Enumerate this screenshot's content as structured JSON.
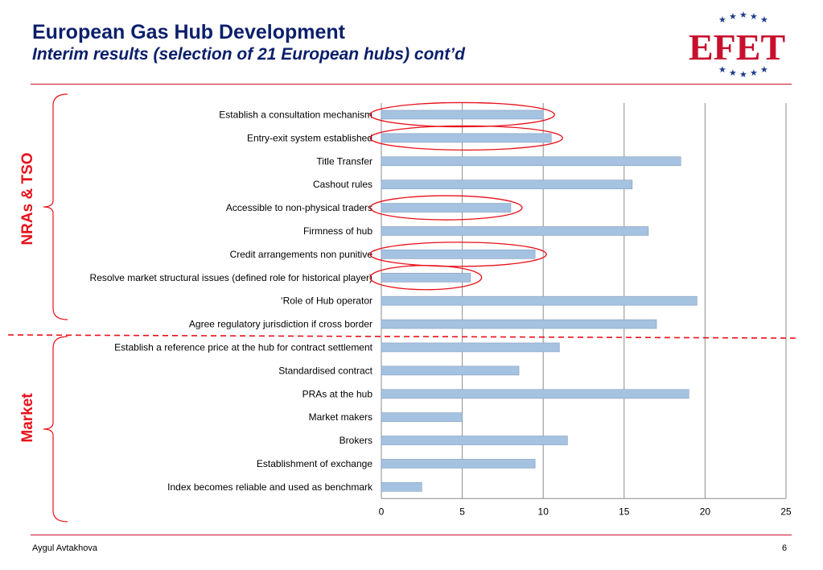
{
  "header": {
    "title": "European Gas Hub Development",
    "subtitle": "Interim results (selection of 21 European hubs)  cont’d"
  },
  "logo": {
    "text": "EFET",
    "star_icon": "star-icon"
  },
  "groups": [
    {
      "label": "NRAs & TSO"
    },
    {
      "label": "Market"
    }
  ],
  "footer": {
    "author": "Aygul Avtakhova",
    "page": "6"
  },
  "colors": {
    "bar": "#a6c2e1",
    "bar_stroke": "#7f9dbf",
    "accent": "#e8101a",
    "title": "#0b1f6b"
  },
  "chart_data": {
    "type": "bar",
    "orientation": "horizontal",
    "categories": [
      "Establish a consultation mechanism",
      "Entry-exit system established",
      "Title Transfer",
      "Cashout rules",
      "Accessible to non-physical traders",
      "Firmness of hub",
      "Credit arrangements non punitive",
      "Resolve market structural issues (defined role for historical player)",
      "‘Role of Hub operator",
      "Agree regulatory jurisdiction if cross border",
      "Establish a reference price at the hub for contract settlement",
      "Standardised contract",
      "PRAs at the hub",
      "Market makers",
      "Brokers",
      "Establishment of exchange",
      "Index becomes reliable and used as benchmark"
    ],
    "values": [
      10,
      10.5,
      18.5,
      15.5,
      8,
      16.5,
      9.5,
      5.5,
      19.5,
      17,
      11,
      8.5,
      19,
      5,
      11.5,
      9.5,
      2.5
    ],
    "highlighted": [
      "Establish a consultation mechanism",
      "Entry-exit system established",
      "Accessible to non-physical traders",
      "Credit arrangements non punitive",
      "Resolve market structural issues (defined role for historical player)"
    ],
    "xlim": [
      0,
      25
    ],
    "xticks": [
      "0",
      "5",
      "10",
      "15",
      "20",
      "25"
    ],
    "grid": "vertical",
    "legend": "none"
  }
}
